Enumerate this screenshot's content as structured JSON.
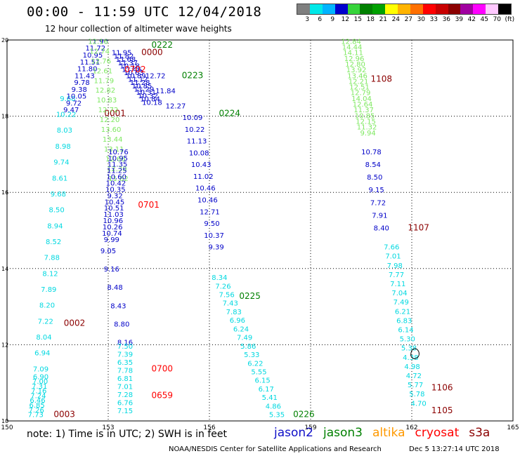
{
  "header": {
    "title": "00:00 - 11:59 UTC 12/04/2018",
    "subtitle": "12 hour collection of altimeter wave heights"
  },
  "colorbar": {
    "labels": [
      "3",
      "6",
      "9",
      "12",
      "15",
      "18",
      "21",
      "24",
      "27",
      "30",
      "33",
      "36",
      "39",
      "42",
      "45",
      "70",
      "(ft)"
    ],
    "colors": [
      "#7f7f7f",
      "#00e8e8",
      "#00b4ff",
      "#0000cd",
      "#36d43a",
      "#008000",
      "#00a000",
      "#ffff00",
      "#ffb400",
      "#ff7000",
      "#ff0000",
      "#c80000",
      "#8b0000",
      "#a000a0",
      "#ff00ff",
      "#ffc8ff",
      "#000000"
    ]
  },
  "note": "note: 1) Time is in UTC; 2) SWH is in feet",
  "credit": "NOAA/NESDIS Center for Satellite Applications and Research",
  "credit_date": "Dec  5 13:27:14 UTC 2018",
  "satellites": [
    {
      "name": "jason2",
      "color": "#1010c8"
    },
    {
      "name": "jason3",
      "color": "#008000"
    },
    {
      "name": "altika",
      "color": "#ff9900"
    },
    {
      "name": "cryosat",
      "color": "#ff0000"
    },
    {
      "name": "s3a",
      "color": "#8b0000"
    }
  ],
  "chart_data": {
    "type": "scatter",
    "title": "00:00 - 11:59 UTC 12/04/2018",
    "subtitle": "12 hour collection of altimeter wave heights",
    "xlabel": "",
    "ylabel": "",
    "xlim": [
      150,
      165
    ],
    "ylim": [
      10,
      20
    ],
    "xticks": [
      150,
      153,
      156,
      159,
      162,
      165
    ],
    "yticks": [
      10,
      12,
      14,
      16,
      18,
      20
    ],
    "grid": true,
    "legend": "bottom",
    "passes": [
      {
        "satellite": "s3a",
        "time_label": "0003",
        "label_at": [
          151.7,
          10.1
        ],
        "label_color": "#8b0000",
        "color": "#00d8e0",
        "line": [
          [
            150.85,
            10.1
          ],
          [
            151.0,
            11.1
          ]
        ],
        "values": [
          "7.73",
          "7.26",
          "6.85",
          "6.46",
          "7.24",
          "7.16",
          "7.31",
          "7.00",
          "6.90"
        ]
      },
      {
        "satellite": "s3a",
        "time_label": "0002",
        "label_at": [
          152.0,
          12.5
        ],
        "label_color": "#8b0000",
        "color": "#00d8e0",
        "line": [
          [
            151.0,
            11.3
          ],
          [
            151.8,
            18.4
          ]
        ],
        "values": [
          "7.09",
          "6.94",
          "8.04",
          "7.22",
          "8.20",
          "7.89",
          "8.12",
          "7.88",
          "8.52",
          "8.94",
          "8.50",
          "9.68",
          "8.61",
          "9.74",
          "8.98",
          "8.03",
          "10.22",
          "9.68"
        ]
      },
      {
        "satellite": "s3a",
        "time_label": "0001",
        "label_at": [
          153.2,
          18.0
        ],
        "label_color": "#8b0000",
        "color": "#0000c8",
        "line": [
          [
            151.9,
            18.1
          ],
          [
            152.7,
            19.9
          ]
        ],
        "values": [
          "9.47",
          "9.72",
          "10.05",
          "9.38",
          "9.78",
          "11.43",
          "11.80",
          "11.51",
          "10.95",
          "11.72",
          "11.90"
        ]
      },
      {
        "satellite": "jason3",
        "time_label": "0222",
        "label_at": [
          154.6,
          19.8
        ],
        "label_color": "#008000",
        "color": "#7ee860",
        "line": [
          [
            152.7,
            19.9
          ],
          [
            153.3,
            16.3
          ]
        ],
        "values": [
          "12.16",
          "12.74",
          "12.76",
          "12.61",
          "11.79",
          "12.82",
          "10.83",
          "12.72",
          "12.20",
          "13.60",
          "13.44",
          "13.11",
          "12.66",
          "12.30",
          "11.62"
        ]
      },
      {
        "satellite": "s3a",
        "time_label": "0000",
        "label_at": [
          154.3,
          19.6
        ],
        "label_color": "#8b0000",
        "color": "#0000c8",
        "line": [
          [
            153.4,
            19.6
          ],
          [
            154.3,
            18.3
          ]
        ],
        "values": [
          "11.95",
          "11.82",
          "11.68",
          "11.37",
          "10.18",
          "11.46",
          "10.63",
          "10.89",
          "11.12",
          "11.28",
          "10.85",
          "11.29",
          "10.31",
          "10.32",
          "10.84",
          "10.18"
        ]
      },
      {
        "satellite": "cryosat",
        "time_label": "0702",
        "label_at": [
          153.8,
          19.15
        ],
        "label_color": "#ff0000",
        "color": "#0000c8",
        "line": [
          [
            153.3,
            17.0
          ],
          [
            153.1,
            14.7
          ]
        ],
        "values": [
          "10.76",
          "10.95",
          "11.35",
          "11.25",
          "10.60",
          "10.42",
          "10.35",
          "9.32",
          "10.45",
          "10.51",
          "11.03",
          "10.96",
          "10.26",
          "10.74",
          "9.99"
        ]
      },
      {
        "satellite": "jason3",
        "time_label": "0223",
        "label_at": [
          155.5,
          19.0
        ],
        "label_color": "#008000",
        "color": "#0000c8",
        "line": [
          [
            154.4,
            19.0
          ],
          [
            155.0,
            18.2
          ]
        ],
        "values": [
          "12.72",
          "11.84",
          "12.27"
        ]
      },
      {
        "satellite": "cryosat",
        "time_label": "0701",
        "label_at": [
          154.2,
          15.6
        ],
        "label_color": "#ff0000",
        "color": "#0000c8",
        "line": [
          [
            153.0,
            14.4
          ],
          [
            153.5,
            12.0
          ]
        ],
        "values": [
          "9.05",
          "9.16",
          "8.48",
          "8.43",
          "8.80",
          "8.16"
        ]
      },
      {
        "satellite": "cryosat",
        "time_label": "0700",
        "label_at": [
          154.6,
          11.3
        ],
        "label_color": "#ff0000",
        "color": "#00d8e0",
        "line": [
          [
            153.5,
            11.9
          ],
          [
            153.5,
            10.2
          ]
        ],
        "values": [
          "7.50",
          "7.39",
          "6.35",
          "7.78",
          "6.81",
          "7.01",
          "7.28",
          "6.76",
          "7.15"
        ]
      },
      {
        "satellite": "cryosat",
        "time_label": "0659",
        "label_at": [
          154.6,
          10.6
        ],
        "label_color": "#ff0000",
        "color": "#00d8e0",
        "line": [
          [
            153.5,
            10.6
          ],
          [
            153.5,
            10.1
          ]
        ],
        "values": []
      },
      {
        "satellite": "jason3",
        "time_label": "0224",
        "label_at": [
          156.6,
          18.0
        ],
        "label_color": "#008000",
        "color": "#0000c8",
        "line": [
          [
            155.5,
            17.9
          ],
          [
            156.2,
            14.5
          ]
        ],
        "values": [
          "10.09",
          "10.22",
          "11.13",
          "10.08",
          "10.43",
          "11.02",
          "10.46",
          "10.46",
          "12.71",
          "9.50",
          "10.37",
          "9.39"
        ]
      },
      {
        "satellite": "jason3",
        "time_label": "0225",
        "label_at": [
          157.2,
          13.2
        ],
        "label_color": "#008000",
        "color": "#00d8e0",
        "line": [
          [
            156.3,
            13.7
          ],
          [
            158.0,
            10.1
          ]
        ],
        "values": [
          "8.34",
          "7.26",
          "7.56",
          "7.43",
          "7.83",
          "6.96",
          "6.24",
          "7.49",
          "5.86",
          "5.33",
          "6.22",
          "5.55",
          "6.15",
          "6.17",
          "5.41",
          "4.86",
          "5.35"
        ]
      },
      {
        "satellite": "jason3",
        "time_label": "0226",
        "label_at": [
          158.8,
          10.1
        ],
        "label_color": "#008000",
        "color": "#00d8e0",
        "line": [
          [
            158.0,
            10.1
          ],
          [
            158.0,
            10.1
          ]
        ],
        "values": []
      },
      {
        "satellite": "s3a",
        "time_label": "1108",
        "label_at": [
          161.1,
          18.9
        ],
        "label_color": "#8b0000",
        "color": "#7ee860",
        "line": [
          [
            160.2,
            19.9
          ],
          [
            160.7,
            17.5
          ]
        ],
        "values": [
          "12.84",
          "14.44",
          "14.11",
          "12.96",
          "12.80",
          "13.92",
          "13.46",
          "12.21",
          "12.51",
          "12.79",
          "14.04",
          "12.64",
          "11.37",
          "10.85",
          "12.15",
          "11.32",
          "9.94"
        ]
      },
      {
        "satellite": "s3a",
        "time_label": "1107",
        "label_at": [
          162.2,
          15.0
        ],
        "label_color": "#8b0000",
        "color": "#0000c8",
        "line": [
          [
            160.8,
            17.0
          ],
          [
            161.1,
            15.0
          ]
        ],
        "values": [
          "10.78",
          "8.54",
          "8.50",
          "9.15",
          "7.72",
          "7.91",
          "8.40"
        ]
      },
      {
        "satellite": "s3a",
        "time_label": "1106",
        "label_at": [
          162.9,
          10.8
        ],
        "label_color": "#8b0000",
        "color": "#00d8e0",
        "line": [
          [
            161.4,
            14.5
          ],
          [
            162.2,
            10.4
          ]
        ],
        "values": [
          "7.66",
          "7.01",
          "7.98",
          "7.77",
          "7.11",
          "7.04",
          "7.49",
          "6.21",
          "6.83",
          "6.14",
          "5.30",
          "5.38",
          "4.38",
          "4.98",
          "4.72",
          "5.77",
          "5.78",
          "4.70"
        ]
      },
      {
        "satellite": "s3a",
        "time_label": "1105",
        "label_at": [
          162.9,
          10.2
        ],
        "label_color": "#8b0000",
        "color": "#00d8e0",
        "line": [
          [
            162.2,
            10.3
          ],
          [
            162.2,
            10.1
          ]
        ],
        "values": []
      }
    ]
  }
}
